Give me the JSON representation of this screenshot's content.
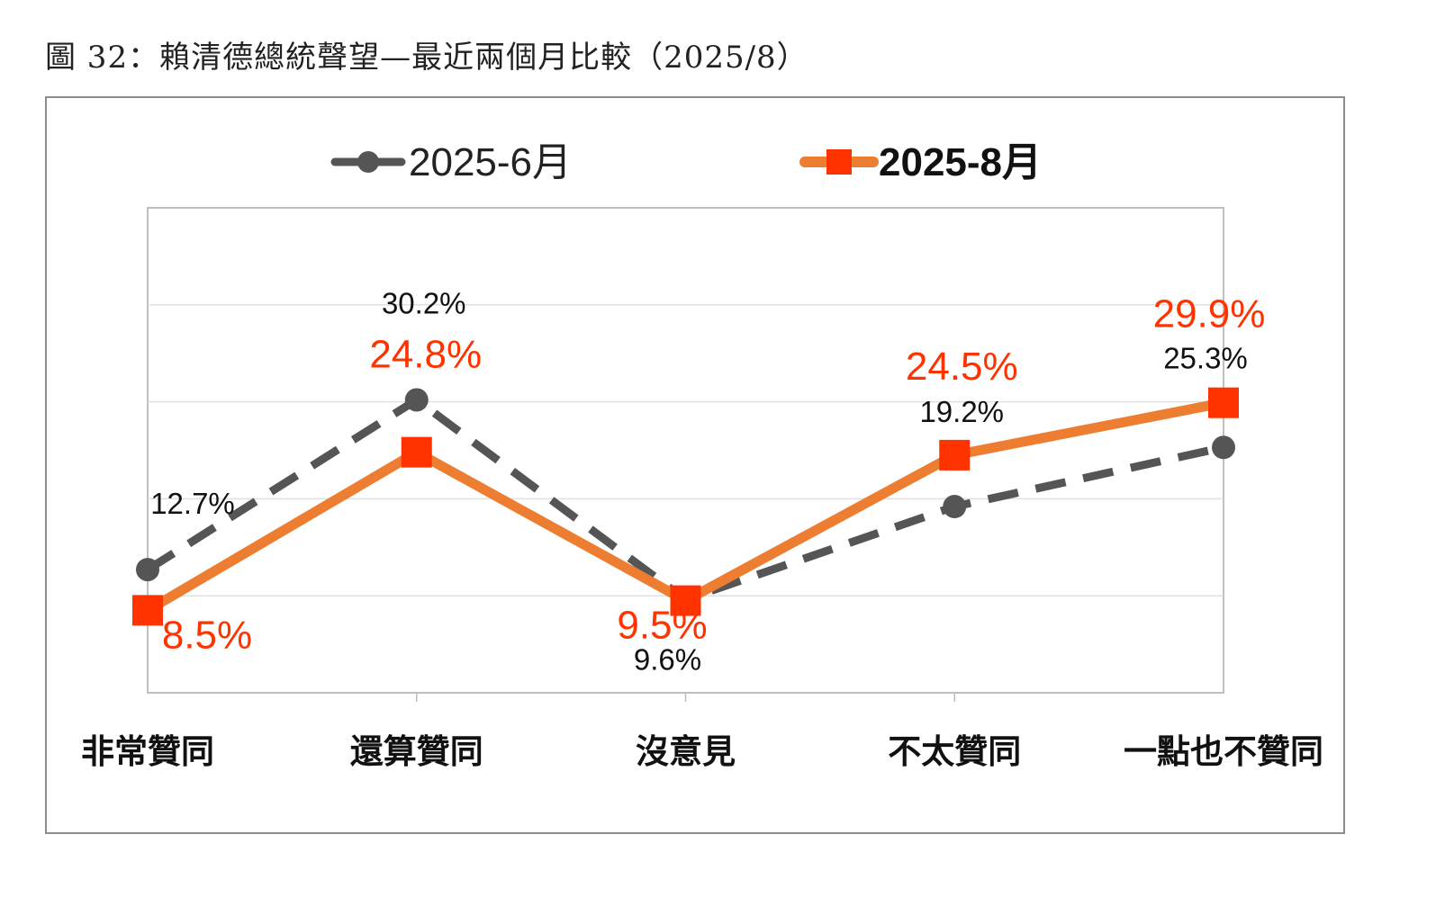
{
  "figure": {
    "title": "圖 32：賴清德總統聲望—最近兩個月比較（2025/8）"
  },
  "chart_data": {
    "type": "line",
    "categories": [
      "非常贊同",
      "還算贊同",
      "沒意見",
      "不太贊同",
      "一點也不贊同"
    ],
    "series": [
      {
        "name": "2025-6月",
        "values": [
          12.7,
          30.2,
          9.6,
          19.2,
          25.3
        ],
        "labels": [
          "12.7%",
          "30.2%",
          "9.6%",
          "19.2%",
          "25.3%"
        ],
        "color": "#555555",
        "style": "dashed",
        "marker": "circle"
      },
      {
        "name": "2025-8月",
        "values": [
          8.5,
          24.8,
          9.5,
          24.5,
          29.9
        ],
        "labels": [
          "8.5%",
          "24.8%",
          "9.5%",
          "24.5%",
          "29.9%"
        ],
        "color": "#ED7D31",
        "marker_color": "#FF3300",
        "label_color": "#FF3300",
        "style": "solid",
        "marker": "square"
      }
    ],
    "ylim": [
      0,
      50
    ],
    "grid": true,
    "legend": "top"
  }
}
